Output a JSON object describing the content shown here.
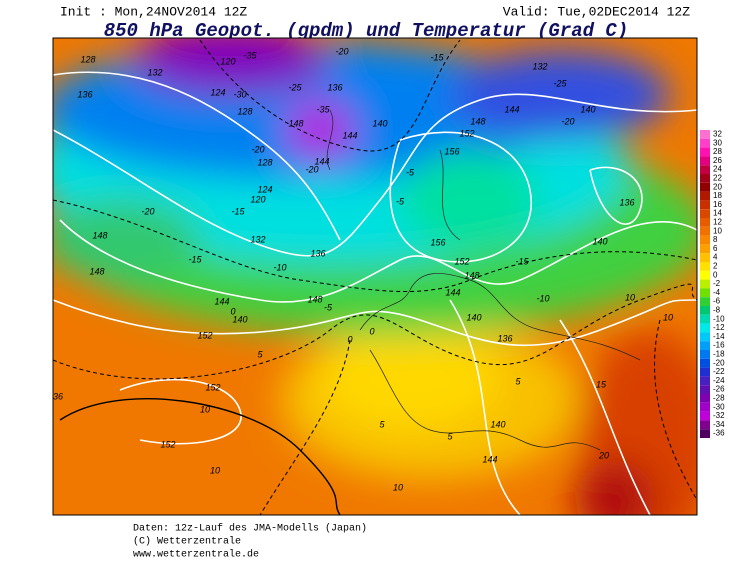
{
  "header": {
    "init": "Init : Mon,24NOV2014 12Z",
    "valid": "Valid: Tue,02DEC2014 12Z",
    "title": "850 hPa Geopot. (gpdm) und Temperatur (Grad C)"
  },
  "colorbar": {
    "levels": [
      32,
      30,
      28,
      26,
      24,
      22,
      20,
      18,
      16,
      14,
      12,
      10,
      8,
      6,
      4,
      2,
      0,
      -2,
      -4,
      -6,
      -8,
      -10,
      -12,
      -14,
      -16,
      -18,
      -20,
      -22,
      -24,
      -26,
      -28,
      -30,
      -32,
      -34,
      -36
    ],
    "colors": [
      "#ff70d0",
      "#ff40c8",
      "#ff10b0",
      "#e00080",
      "#c00040",
      "#a00018",
      "#900000",
      "#b01800",
      "#c83000",
      "#d84800",
      "#e85c00",
      "#f07000",
      "#f88800",
      "#fca000",
      "#ffc000",
      "#ffe000",
      "#ffff00",
      "#b8f000",
      "#70e000",
      "#30d030",
      "#00c870",
      "#00d8b0",
      "#00e8e8",
      "#00c8f8",
      "#00a0f8",
      "#0078f0",
      "#0050e0",
      "#2030d0",
      "#4820c0",
      "#6010b0",
      "#8000b0",
      "#a000c8",
      "#c000d8",
      "#800090",
      "#500060"
    ]
  },
  "map": {
    "contour_labels": [
      "128",
      "132",
      "136",
      "120",
      "-35",
      "124",
      "-30",
      "128",
      "-20",
      "-25",
      "136",
      "-35",
      "148",
      "140",
      "144",
      "-20",
      "128",
      "144",
      "-20",
      "124",
      "120",
      "-15",
      "-20",
      "132",
      "148",
      "-15",
      "148",
      "-10",
      "136",
      "144",
      "140",
      "148",
      "-5",
      "0",
      "152",
      "5",
      "0",
      "-15",
      "132",
      "-25",
      "144",
      "140",
      "-20",
      "148",
      "152",
      "156",
      "-5",
      "-5",
      "136",
      "156",
      "152",
      "-15",
      "148",
      "144",
      "-10",
      "140",
      "10",
      "10",
      "140",
      "136",
      "5",
      "15",
      "152",
      "10",
      "36",
      "152",
      "5",
      "140",
      "144",
      "10",
      "10",
      "20",
      "5",
      "0"
    ]
  },
  "footer": {
    "lines": [
      "Daten: 12z-Lauf des JMA-Modells (Japan)",
      "(C) Wetterzentrale",
      "www.wetterzentrale.de"
    ]
  }
}
